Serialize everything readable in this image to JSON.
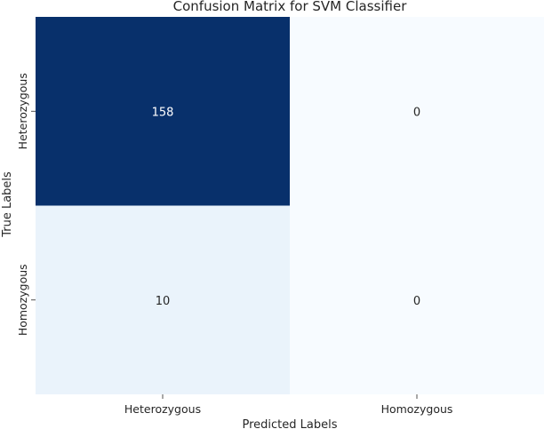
{
  "chart_data": {
    "type": "heatmap",
    "title": "Confusion Matrix for SVM Classifier",
    "xlabel": "Predicted Labels",
    "ylabel": "True Labels",
    "x_categories": [
      "Heterozygous",
      "Homozygous"
    ],
    "y_categories": [
      "Heterozygous",
      "Homozygous"
    ],
    "values": [
      [
        158,
        0
      ],
      [
        10,
        0
      ]
    ],
    "colormap": "Blues",
    "colorbar": false,
    "colors": {
      "low": "#f7fbff",
      "high": "#08306b",
      "text_on_dark": "#ffffff",
      "text_on_light": "#262626"
    }
  }
}
